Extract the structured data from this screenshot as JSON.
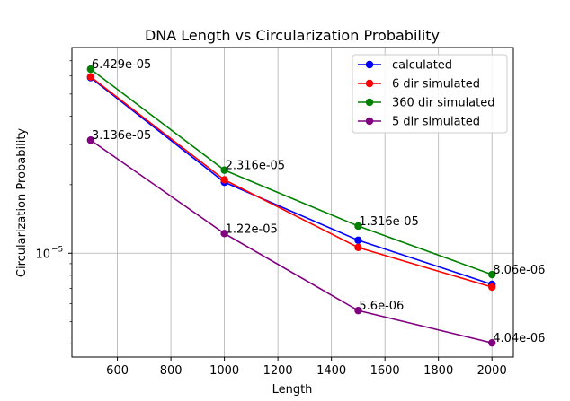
{
  "chart_data": {
    "type": "line",
    "title": "DNA Length vs Circularization Probability",
    "xlabel": "Length",
    "ylabel": "Circularization Probability",
    "yscale": "log",
    "xlim": [
      430,
      2080
    ],
    "ylim": [
      3.5e-06,
      8e-05
    ],
    "grid": true,
    "legend_position": "top-right",
    "x": [
      500,
      1000,
      1500,
      2000
    ],
    "x_ticks": [
      600,
      800,
      1000,
      1200,
      1400,
      1600,
      1800,
      2000
    ],
    "x_tick_labels": [
      "600",
      "800",
      "1000",
      "1200",
      "1400",
      "1600",
      "1800",
      "2000"
    ],
    "y_ticks": [
      1e-05
    ],
    "y_tick_base": "10",
    "y_tick_exponent": "−5",
    "series": [
      {
        "name": "calculated",
        "color": "#0000ff",
        "values": [
          5.9e-05,
          2.05e-05,
          1.14e-05,
          7.3e-06
        ]
      },
      {
        "name": "6 dir simulated",
        "color": "#ff0000",
        "values": [
          5.95e-05,
          2.1e-05,
          1.06e-05,
          7.1e-06
        ]
      },
      {
        "name": "360 dir simulated",
        "color": "#008000",
        "values": [
          6.429e-05,
          2.316e-05,
          1.316e-05,
          8.06e-06
        ]
      },
      {
        "name": "5 dir simulated",
        "color": "#800080",
        "values": [
          3.136e-05,
          1.22e-05,
          5.6e-06,
          4.04e-06
        ]
      }
    ],
    "annotations": [
      {
        "x": 500,
        "y": 6.429e-05,
        "text": "6.429e-05"
      },
      {
        "x": 500,
        "y": 3.136e-05,
        "text": "3.136e-05"
      },
      {
        "x": 1000,
        "y": 2.316e-05,
        "text": "2.316e-05"
      },
      {
        "x": 1000,
        "y": 1.22e-05,
        "text": "1.22e-05"
      },
      {
        "x": 1500,
        "y": 1.316e-05,
        "text": "1.316e-05"
      },
      {
        "x": 1500,
        "y": 5.6e-06,
        "text": "5.6e-06"
      },
      {
        "x": 2000,
        "y": 8.06e-06,
        "text": "8.06e-06"
      },
      {
        "x": 2000,
        "y": 4.04e-06,
        "text": "4.04e-06"
      }
    ]
  }
}
